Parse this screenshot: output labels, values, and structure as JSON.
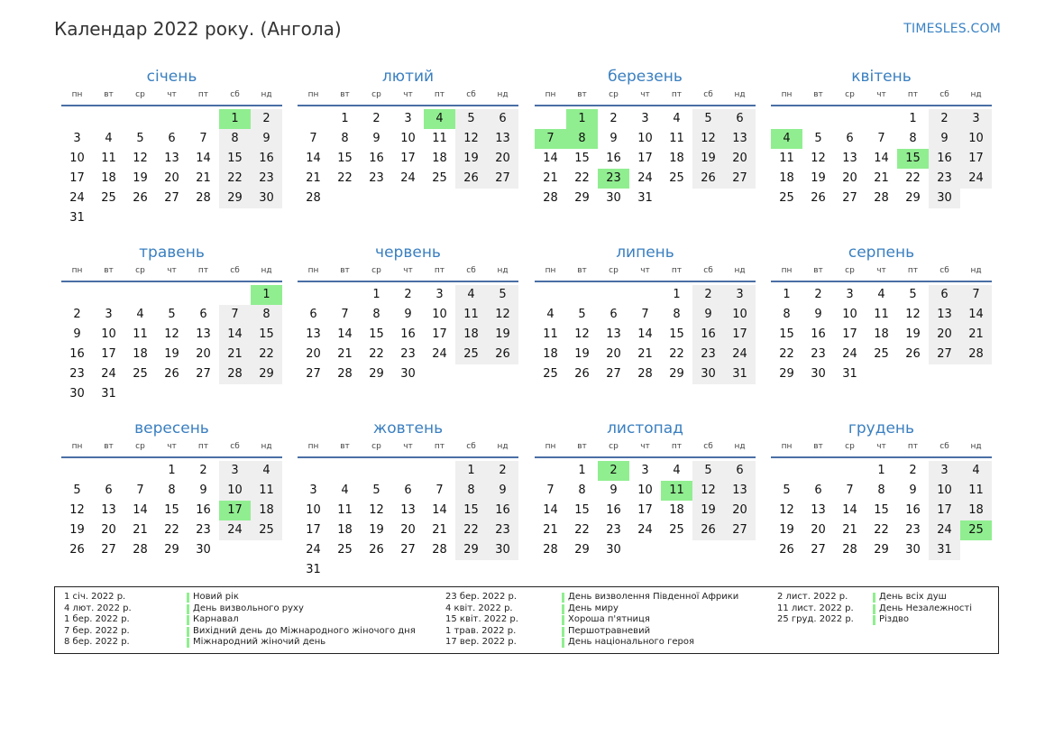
{
  "page": {
    "title": "Календар 2022 року. (Ангола)",
    "brand": "TIMESLES.COM"
  },
  "weekdays": [
    "пн",
    "вт",
    "ср",
    "чт",
    "пт",
    "сб",
    "нд"
  ],
  "colors": {
    "accent": "#3a7fc0",
    "holiday": "#90ee90",
    "weekend": "#efefef",
    "rule": "#4a6fa5"
  },
  "months": [
    {
      "name": "січень",
      "offset": 5,
      "days": 31,
      "holidays": [
        1
      ]
    },
    {
      "name": "лютий",
      "offset": 1,
      "days": 28,
      "holidays": [
        4
      ]
    },
    {
      "name": "березень",
      "offset": 1,
      "days": 31,
      "holidays": [
        1,
        7,
        8,
        23
      ]
    },
    {
      "name": "квітень",
      "offset": 4,
      "days": 30,
      "holidays": [
        4,
        15
      ]
    },
    {
      "name": "травень",
      "offset": 6,
      "days": 31,
      "holidays": [
        1
      ]
    },
    {
      "name": "червень",
      "offset": 2,
      "days": 30,
      "holidays": []
    },
    {
      "name": "липень",
      "offset": 4,
      "days": 31,
      "holidays": []
    },
    {
      "name": "серпень",
      "offset": 0,
      "days": 31,
      "holidays": []
    },
    {
      "name": "вересень",
      "offset": 3,
      "days": 30,
      "holidays": [
        17
      ]
    },
    {
      "name": "жовтень",
      "offset": 5,
      "days": 31,
      "holidays": []
    },
    {
      "name": "листопад",
      "offset": 1,
      "days": 30,
      "holidays": [
        2,
        11
      ]
    },
    {
      "name": "грудень",
      "offset": 3,
      "days": 31,
      "holidays": [
        25
      ]
    }
  ],
  "holidays": [
    [
      {
        "date": "1 січ. 2022 р.",
        "name": "Новий рік"
      },
      {
        "date": "4 лют. 2022 р.",
        "name": "День визвольного руху"
      },
      {
        "date": "1 бер. 2022 р.",
        "name": "Карнавал"
      },
      {
        "date": "7 бер. 2022 р.",
        "name": "Вихідний день до Міжнародного жіночого дня"
      },
      {
        "date": "8 бер. 2022 р.",
        "name": "Міжнародний жіночий день"
      }
    ],
    [
      {
        "date": "23 бер. 2022 р.",
        "name": "День визволення Південної Африки"
      },
      {
        "date": "4 квіт. 2022 р.",
        "name": "День миру"
      },
      {
        "date": "15 квіт. 2022 р.",
        "name": "Хороша п'ятниця"
      },
      {
        "date": "1 трав. 2022 р.",
        "name": "Першотравневий"
      },
      {
        "date": "17 вер. 2022 р.",
        "name": "День національного героя"
      }
    ],
    [
      {
        "date": "2 лист. 2022 р.",
        "name": "День всіх душ"
      },
      {
        "date": "11 лист. 2022 р.",
        "name": "День Незалежності"
      },
      {
        "date": "25 груд. 2022 р.",
        "name": "Різдво"
      }
    ]
  ]
}
